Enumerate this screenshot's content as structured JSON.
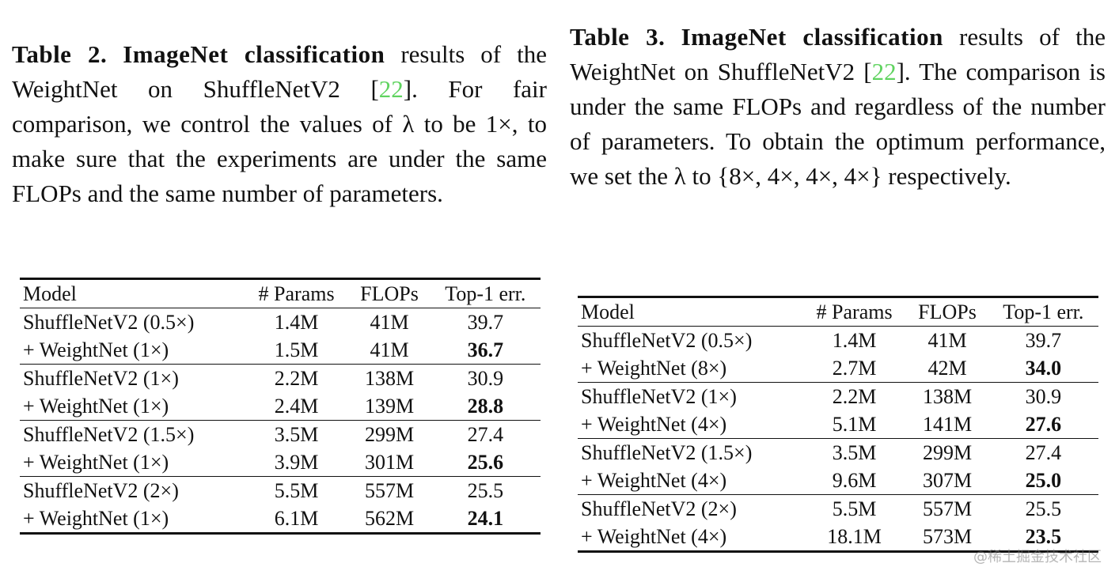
{
  "tables": [
    {
      "caption": {
        "label": "Table 2.",
        "title": "ImageNet classification",
        "text_1": "results of the WeightNet on ShuffleNetV2 [",
        "ref": "22",
        "text_2": "]. For fair comparison, we control the values of λ to be 1×, to make sure that the experiments are under the same FLOPs and the same number of parameters."
      },
      "header": [
        "Model",
        "# Params",
        "FLOPs",
        "Top-1 err."
      ],
      "rows": [
        [
          "ShuffleNetV2 (0.5×)",
          "1.4M",
          "41M",
          "39.7"
        ],
        [
          "+ WeightNet (1×)",
          "1.5M",
          "41M",
          "36.7"
        ],
        [
          "ShuffleNetV2 (1×)",
          "2.2M",
          "138M",
          "30.9"
        ],
        [
          "+ WeightNet (1×)",
          "2.4M",
          "139M",
          "28.8"
        ],
        [
          "ShuffleNetV2 (1.5×)",
          "3.5M",
          "299M",
          "27.4"
        ],
        [
          "+ WeightNet (1×)",
          "3.9M",
          "301M",
          "25.6"
        ],
        [
          "ShuffleNetV2 (2×)",
          "5.5M",
          "557M",
          "25.5"
        ],
        [
          "+ WeightNet (1×)",
          "6.1M",
          "562M",
          "24.1"
        ]
      ]
    },
    {
      "caption": {
        "label": "Table 3.",
        "title": "ImageNet classification",
        "text_1": "results of the WeightNet on ShuffleNetV2 [",
        "ref": "22",
        "text_2": "]. The comparison is under the same FLOPs and regardless of the number of parameters. To obtain the optimum performance, we set the λ to {8×, 4×, 4×, 4×} respectively."
      },
      "header": [
        "Model",
        "# Params",
        "FLOPs",
        "Top-1 err."
      ],
      "rows": [
        [
          "ShuffleNetV2 (0.5×)",
          "1.4M",
          "41M",
          "39.7"
        ],
        [
          "+ WeightNet (8×)",
          "2.7M",
          "42M",
          "34.0"
        ],
        [
          "ShuffleNetV2 (1×)",
          "2.2M",
          "138M",
          "30.9"
        ],
        [
          "+ WeightNet (4×)",
          "5.1M",
          "141M",
          "27.6"
        ],
        [
          "ShuffleNetV2 (1.5×)",
          "3.5M",
          "299M",
          "27.4"
        ],
        [
          "+ WeightNet (4×)",
          "9.6M",
          "307M",
          "25.0"
        ],
        [
          "ShuffleNetV2 (2×)",
          "5.5M",
          "557M",
          "25.5"
        ],
        [
          "+ WeightNet (4×)",
          "18.1M",
          "573M",
          "23.5"
        ]
      ]
    }
  ],
  "watermark": "@稀土掘金技术社区"
}
